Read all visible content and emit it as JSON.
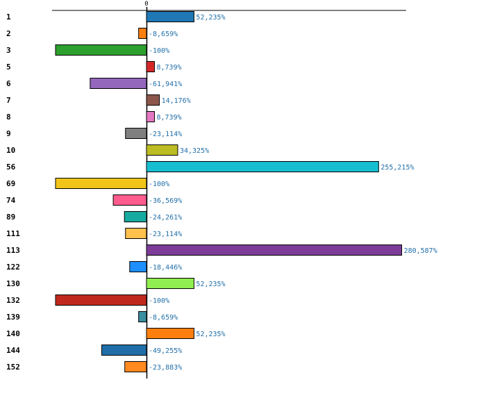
{
  "chart_data": {
    "type": "bar",
    "orientation": "horizontal",
    "title": "",
    "xlabel": "",
    "ylabel": "",
    "zero_label": "0",
    "xlim": [
      -100,
      290
    ],
    "grid": false,
    "categories": [
      "1",
      "2",
      "3",
      "5",
      "6",
      "7",
      "8",
      "9",
      "10",
      "56",
      "69",
      "74",
      "89",
      "111",
      "113",
      "122",
      "130",
      "132",
      "139",
      "140",
      "144",
      "152"
    ],
    "values": [
      52.235,
      -8.659,
      -100,
      8.739,
      -61.941,
      14.176,
      8.739,
      -23.114,
      34.325,
      255.215,
      -100,
      -36.569,
      -24.261,
      -23.114,
      280.587,
      -18.446,
      52.235,
      -100,
      -8.659,
      52.235,
      -49.255,
      -23.883
    ],
    "value_labels": [
      "52,235%",
      "-8,659%",
      "-100%",
      "8,739%",
      "-61,941%",
      "14,176%",
      "8,739%",
      "-23,114%",
      "34,325%",
      "255,215%",
      "-100%",
      "-36,569%",
      "-24,261%",
      "-23,114%",
      "280,587%",
      "-18,446%",
      "52,235%",
      "-100%",
      "-8,659%",
      "52,235%",
      "-49,255%",
      "-23,883%"
    ],
    "colors": [
      "#1f77b4",
      "#ff7f0e",
      "#2ca02c",
      "#d62728",
      "#9467bd",
      "#8c564b",
      "#e377c2",
      "#7f7f7f",
      "#bcbd22",
      "#17becf",
      "#f0c419",
      "#ff5c8d",
      "#17aaa0",
      "#ffc04d",
      "#7d3c98",
      "#1e8fff",
      "#90ee50",
      "#c0281e",
      "#3a8fa0",
      "#ff7f0e",
      "#1f6ea8",
      "#ff8a1f"
    ]
  }
}
